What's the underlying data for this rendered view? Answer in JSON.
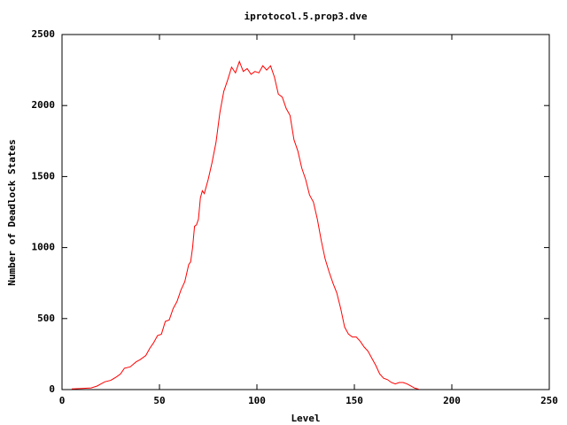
{
  "chart_data": {
    "type": "line",
    "title": "iprotocol.5.prop3.dve",
    "xlabel": "Level",
    "ylabel": "Number of Deadlock States",
    "x": [
      5,
      10,
      15,
      18,
      20,
      22,
      25,
      28,
      30,
      32,
      35,
      38,
      40,
      43,
      45,
      47,
      49,
      51,
      53,
      55,
      57,
      59,
      61,
      63,
      65,
      66,
      67,
      68,
      69,
      70,
      71,
      72,
      73,
      75,
      77,
      79,
      81,
      83,
      85,
      87,
      89,
      91,
      93,
      95,
      97,
      99,
      101,
      103,
      105,
      107,
      109,
      111,
      113,
      115,
      117,
      119,
      121,
      123,
      125,
      127,
      129,
      131,
      133,
      135,
      137,
      139,
      141,
      143,
      145,
      147,
      149,
      151,
      153,
      155,
      157,
      159,
      161,
      163,
      165,
      167,
      169,
      171,
      173,
      175,
      177,
      179,
      181,
      183
    ],
    "series": [
      {
        "name": "Number of Deadlock States",
        "color": "#ff0000",
        "values": [
          5,
          8,
          12,
          25,
          40,
          55,
          65,
          90,
          110,
          150,
          160,
          195,
          210,
          240,
          290,
          330,
          380,
          390,
          480,
          490,
          570,
          620,
          700,
          760,
          880,
          900,
          1000,
          1150,
          1160,
          1200,
          1350,
          1400,
          1380,
          1480,
          1600,
          1740,
          1950,
          2100,
          2180,
          2270,
          2230,
          2310,
          2240,
          2260,
          2220,
          2240,
          2230,
          2280,
          2250,
          2280,
          2200,
          2080,
          2060,
          1980,
          1930,
          1760,
          1680,
          1560,
          1480,
          1370,
          1320,
          1200,
          1050,
          920,
          830,
          750,
          680,
          570,
          440,
          390,
          370,
          370,
          340,
          300,
          270,
          220,
          170,
          110,
          80,
          70,
          50,
          40,
          50,
          50,
          40,
          25,
          10,
          3
        ]
      }
    ],
    "xlim": [
      0,
      250
    ],
    "xticks": [
      0,
      50,
      100,
      150,
      200,
      250
    ],
    "ylim": [
      0,
      2500
    ],
    "yticks": [
      0,
      500,
      1000,
      1500,
      2000,
      2500
    ]
  }
}
